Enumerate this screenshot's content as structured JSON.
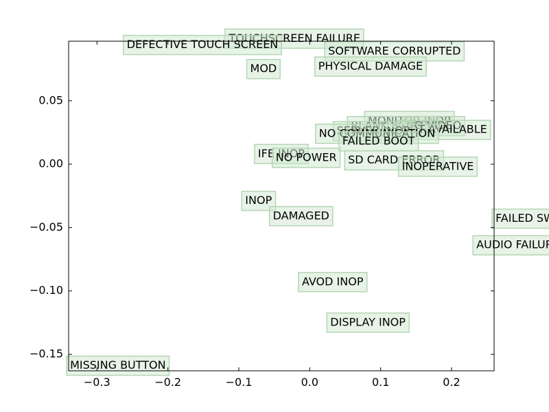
{
  "chart_data": {
    "type": "scatter",
    "title": "",
    "xlabel": "",
    "ylabel": "",
    "xlim": [
      -0.34,
      0.26
    ],
    "ylim": [
      -0.163,
      0.097
    ],
    "grid": false,
    "x_ticks": [
      -0.3,
      -0.2,
      -0.1,
      0.0,
      0.1,
      0.2
    ],
    "x_tick_labels": [
      "−0.3",
      "−0.2",
      "−0.1",
      "0.0",
      "0.1",
      "0.2"
    ],
    "y_ticks": [
      0.05,
      0.0,
      -0.05,
      -0.1,
      -0.15
    ],
    "y_tick_labels": [
      "0.05",
      "0.00",
      "−0.05",
      "−0.10",
      "−0.15"
    ],
    "label_box_color": "#cfe8cf",
    "label_box_border": "#b5d6b5",
    "points": [
      {
        "label": "TOUCHSCREEN FAILURE",
        "x": -0.114,
        "y": 0.099
      },
      {
        "label": "DEFECTIVE TOUCH SCREEN",
        "x": -0.258,
        "y": 0.094
      },
      {
        "label": "SOFTWARE CORRUPTED",
        "x": 0.026,
        "y": 0.089
      },
      {
        "label": "MOD",
        "x": -0.084,
        "y": 0.075
      },
      {
        "label": "PHYSICAL DAMAGE",
        "x": 0.012,
        "y": 0.077
      },
      {
        "label": "MONITOR INOP",
        "x": 0.082,
        "y": 0.034
      },
      {
        "label": "BLANK SCREEN",
        "x": 0.058,
        "y": 0.03
      },
      {
        "label": "NO VIDEO",
        "x": 0.136,
        "y": 0.03
      },
      {
        "label": "NOT AVAILABLE",
        "x": 0.129,
        "y": 0.027
      },
      {
        "label": "SERVER INOP",
        "x": 0.038,
        "y": 0.026
      },
      {
        "label": "NO COMMUNICATION",
        "x": 0.013,
        "y": 0.024
      },
      {
        "label": "FAILED BOOT",
        "x": 0.046,
        "y": 0.018
      },
      {
        "label": "IFE INOP",
        "x": -0.073,
        "y": 0.008
      },
      {
        "label": "NO POWER",
        "x": -0.048,
        "y": 0.005
      },
      {
        "label": "SD CARD ERROR",
        "x": 0.054,
        "y": 0.003
      },
      {
        "label": "INOPERATIVE",
        "x": 0.13,
        "y": -0.002
      },
      {
        "label": "INOP",
        "x": -0.091,
        "y": -0.029
      },
      {
        "label": "DAMAGED",
        "x": -0.052,
        "y": -0.041
      },
      {
        "label": "FAILED SW",
        "x": 0.262,
        "y": -0.043
      },
      {
        "label": "AUDIO FAILURE",
        "x": 0.235,
        "y": -0.064
      },
      {
        "label": "AVOD INOP",
        "x": -0.011,
        "y": -0.093
      },
      {
        "label": "DISPLAY INOP",
        "x": 0.029,
        "y": -0.125
      },
      {
        "label": "MISSING BUTTON",
        "x": -0.338,
        "y": -0.159
      }
    ]
  }
}
